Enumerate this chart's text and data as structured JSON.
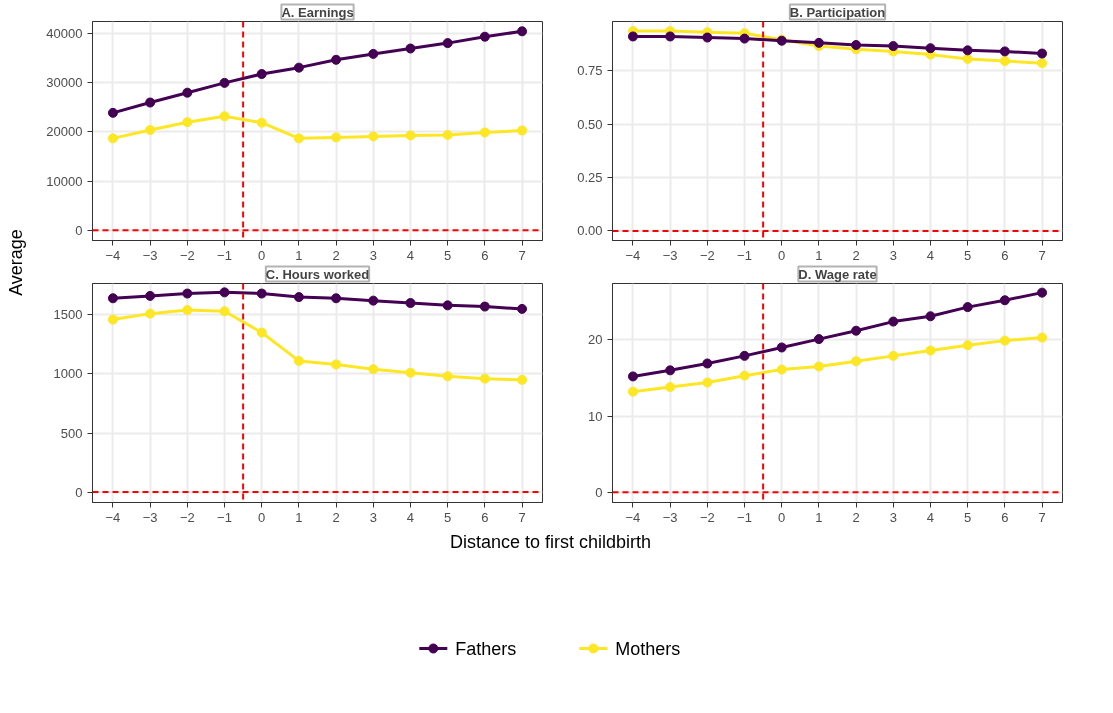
{
  "chart_data": [
    {
      "type": "line",
      "title": "A. Earnings",
      "x": [
        -4,
        -3,
        -2,
        -1,
        0,
        1,
        2,
        3,
        4,
        5,
        6,
        7
      ],
      "xlim": [
        -4.55,
        7.55
      ],
      "xticks": [
        {
          "value": -4,
          "label": "−4"
        },
        {
          "value": -3,
          "label": "−3"
        },
        {
          "value": -2,
          "label": "−2"
        },
        {
          "value": -1,
          "label": "−1"
        },
        0,
        1,
        2,
        3,
        4,
        5,
        6,
        7
      ],
      "ylim": [
        -2100,
        42500
      ],
      "yticks": [
        0,
        10000,
        20000,
        30000,
        40000
      ],
      "ylabel": "Average",
      "grid": true,
      "marker": "circle",
      "ref_lines": [
        {
          "axis": "x",
          "value": -0.5,
          "color": "#ff0000",
          "line_style": "dashed"
        },
        {
          "axis": "y",
          "value": 0,
          "color": "#ff0000",
          "line_style": "dashed"
        }
      ],
      "series": [
        {
          "color": "#440154",
          "values": [
            23900,
            26000,
            28000,
            30000,
            31800,
            33100,
            34700,
            35900,
            37000,
            38100,
            39400,
            40500
          ]
        },
        {
          "color": "#fde725",
          "values": [
            18700,
            20400,
            22000,
            23200,
            21900,
            18700,
            18900,
            19100,
            19300,
            19400,
            19900,
            20300
          ]
        }
      ]
    },
    {
      "type": "line",
      "title": "B. Participation",
      "x": [
        -4,
        -3,
        -2,
        -1,
        0,
        1,
        2,
        3,
        4,
        5,
        6,
        7
      ],
      "xlim": [
        -4.55,
        7.55
      ],
      "xticks": [
        {
          "value": -4,
          "label": "−4"
        },
        {
          "value": -3,
          "label": "−3"
        },
        {
          "value": -2,
          "label": "−2"
        },
        {
          "value": -1,
          "label": "−1"
        },
        0,
        1,
        2,
        3,
        4,
        5,
        6,
        7
      ],
      "ylim": [
        -0.045,
        0.98
      ],
      "yticks": [
        {
          "value": 0,
          "label": "0.00"
        },
        0.25,
        {
          "value": 0.5,
          "label": "0.50"
        },
        0.75
      ],
      "grid": true,
      "marker": "circle",
      "ref_lines": [
        {
          "axis": "x",
          "value": -0.5,
          "color": "#ff0000",
          "line_style": "dashed"
        },
        {
          "axis": "y",
          "value": 0,
          "color": "#ff0000",
          "line_style": "dashed"
        }
      ],
      "series": [
        {
          "color": "#440154",
          "values": [
            0.91,
            0.91,
            0.905,
            0.9,
            0.89,
            0.88,
            0.87,
            0.865,
            0.855,
            0.845,
            0.84,
            0.83
          ]
        },
        {
          "color": "#fde725",
          "values": [
            0.935,
            0.935,
            0.93,
            0.925,
            0.895,
            0.865,
            0.85,
            0.84,
            0.825,
            0.805,
            0.795,
            0.785
          ]
        }
      ]
    },
    {
      "type": "line",
      "title": "C. Hours worked",
      "x": [
        -4,
        -3,
        -2,
        -1,
        0,
        1,
        2,
        3,
        4,
        5,
        6,
        7
      ],
      "xlim": [
        -4.55,
        7.55
      ],
      "xticks": [
        {
          "value": -4,
          "label": "−4"
        },
        {
          "value": -3,
          "label": "−3"
        },
        {
          "value": -2,
          "label": "−2"
        },
        {
          "value": -1,
          "label": "−1"
        },
        0,
        1,
        2,
        3,
        4,
        5,
        6,
        7
      ],
      "ylim": [
        -88,
        1765
      ],
      "yticks": [
        0,
        500,
        1000,
        1500
      ],
      "xlabel": "Distance to first childbirth",
      "grid": true,
      "marker": "circle",
      "legend": "bottom",
      "ref_lines": [
        {
          "axis": "x",
          "value": -0.5,
          "color": "#ff0000",
          "line_style": "dashed"
        },
        {
          "axis": "y",
          "value": 0,
          "color": "#ff0000",
          "line_style": "dashed"
        }
      ],
      "series": [
        {
          "name": "Fathers",
          "color": "#440154",
          "values": [
            1640,
            1660,
            1680,
            1690,
            1680,
            1650,
            1640,
            1620,
            1600,
            1580,
            1570,
            1550
          ]
        },
        {
          "name": "Mothers",
          "color": "#fde725",
          "values": [
            1460,
            1510,
            1540,
            1530,
            1350,
            1110,
            1080,
            1040,
            1010,
            980,
            960,
            950
          ]
        }
      ]
    },
    {
      "type": "line",
      "title": "D. Wage rate",
      "x": [
        -4,
        -3,
        -2,
        -1,
        0,
        1,
        2,
        3,
        4,
        5,
        6,
        7
      ],
      "xlim": [
        -4.55,
        7.55
      ],
      "xticks": [
        {
          "value": -4,
          "label": "−4"
        },
        {
          "value": -3,
          "label": "−3"
        },
        {
          "value": -2,
          "label": "−2"
        },
        {
          "value": -1,
          "label": "−1"
        },
        0,
        1,
        2,
        3,
        4,
        5,
        6,
        7
      ],
      "ylim": [
        -1.35,
        27.4
      ],
      "yticks": [
        0,
        10,
        20
      ],
      "grid": true,
      "marker": "circle",
      "ref_lines": [
        {
          "axis": "x",
          "value": -0.5,
          "color": "#ff0000",
          "line_style": "dashed"
        },
        {
          "axis": "y",
          "value": 0,
          "color": "#ff0000",
          "line_style": "dashed"
        }
      ],
      "series": [
        {
          "color": "#440154",
          "values": [
            15.2,
            16.0,
            16.9,
            17.9,
            19.0,
            20.1,
            21.2,
            22.4,
            23.1,
            24.3,
            25.2,
            26.2
          ]
        },
        {
          "color": "#fde725",
          "values": [
            13.2,
            13.8,
            14.4,
            15.3,
            16.1,
            16.5,
            17.2,
            17.9,
            18.6,
            19.3,
            19.9,
            20.3
          ]
        }
      ]
    }
  ]
}
